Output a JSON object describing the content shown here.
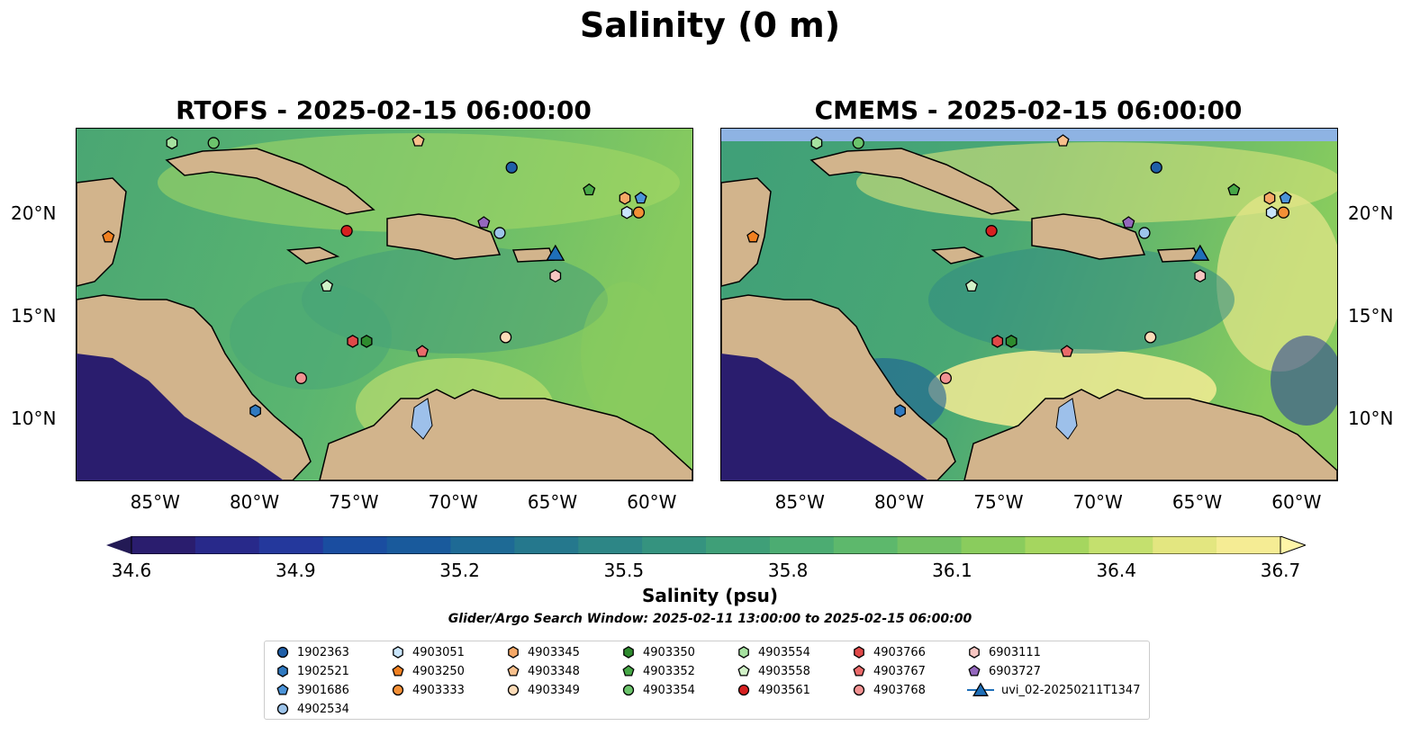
{
  "suptitle": "Salinity (0 m)",
  "panels": [
    {
      "title": "RTOFS - 2025-02-15 06:00:00"
    },
    {
      "title": "CMEMS - 2025-02-15 06:00:00"
    }
  ],
  "lon_labels": [
    "85°W",
    "80°W",
    "75°W",
    "70°W",
    "65°W",
    "60°W"
  ],
  "lat_labels": [
    "20°N",
    "15°N",
    "10°N"
  ],
  "colorbar": {
    "ticks": [
      "34.6",
      "34.9",
      "35.2",
      "35.5",
      "35.8",
      "36.1",
      "36.4",
      "36.7"
    ],
    "label": "Salinity (psu)",
    "colors": [
      "#2a1d6e",
      "#28298a",
      "#24389c",
      "#1a4da0",
      "#195a9c",
      "#1e6a95",
      "#25788d",
      "#2d8686",
      "#35937f",
      "#3f9f78",
      "#4cac72",
      "#5db86c",
      "#72c164",
      "#8acc5d",
      "#a5d65f",
      "#c4e06e",
      "#e3e680",
      "#f5ec94"
    ]
  },
  "search_window": "Glider/Argo Search Window: 2025-02-11 13:00:00 to 2025-02-15 06:00:00",
  "legend": [
    {
      "label": "1902363",
      "shape": "circle",
      "color": "#1f5fa8"
    },
    {
      "label": "1902521",
      "shape": "hexagon",
      "color": "#2f79c0"
    },
    {
      "label": "3901686",
      "shape": "pentagon",
      "color": "#4b93d8"
    },
    {
      "label": "4902534",
      "shape": "circle",
      "color": "#9dc4ea"
    },
    {
      "label": "4903051",
      "shape": "hexagon",
      "color": "#c9e5fb"
    },
    {
      "label": "4903250",
      "shape": "pentagon",
      "color": "#f08020"
    },
    {
      "label": "4903333",
      "shape": "circle",
      "color": "#f39036"
    },
    {
      "label": "4903345",
      "shape": "hexagon",
      "color": "#f6a866"
    },
    {
      "label": "4903348",
      "shape": "pentagon",
      "color": "#f8c08c"
    },
    {
      "label": "4903349",
      "shape": "circle",
      "color": "#fcdcb8"
    },
    {
      "label": "4903350",
      "shape": "hexagon",
      "color": "#2e8b2e"
    },
    {
      "label": "4903352",
      "shape": "pentagon",
      "color": "#47a847"
    },
    {
      "label": "4903354",
      "shape": "circle",
      "color": "#6cc46c"
    },
    {
      "label": "4903554",
      "shape": "hexagon",
      "color": "#a6e2a0"
    },
    {
      "label": "4903558",
      "shape": "pentagon",
      "color": "#d2f2c8"
    },
    {
      "label": "4903561",
      "shape": "circle",
      "color": "#d62020"
    },
    {
      "label": "4903766",
      "shape": "hexagon",
      "color": "#e04848"
    },
    {
      "label": "4903767",
      "shape": "pentagon",
      "color": "#ea6a6a"
    },
    {
      "label": "4903768",
      "shape": "circle",
      "color": "#f29292"
    },
    {
      "label": "6903111",
      "shape": "hexagon",
      "color": "#f8c6c2"
    },
    {
      "label": "6903727",
      "shape": "pentagon",
      "color": "#9467bd"
    },
    {
      "label": "uvi_02-20250211T1347",
      "shape": "triangle",
      "color": "#1f6fb8"
    }
  ],
  "markers": [
    {
      "id": "1902363",
      "shape": "circle",
      "color": "#1f5fa8",
      "lon": -67.1,
      "lat": 22.3
    },
    {
      "id": "1902521",
      "shape": "hexagon",
      "color": "#2f79c0",
      "lon": -80.0,
      "lat": 10.4
    },
    {
      "id": "3901686",
      "shape": "pentagon",
      "color": "#4b93d8",
      "lon": -60.6,
      "lat": 20.8
    },
    {
      "id": "4902534",
      "shape": "circle",
      "color": "#9dc4ea",
      "lon": -67.7,
      "lat": 19.1
    },
    {
      "id": "4903051",
      "shape": "hexagon",
      "color": "#c9e5fb",
      "lon": -61.3,
      "lat": 20.1
    },
    {
      "id": "4903250",
      "shape": "pentagon",
      "color": "#f08020",
      "lon": -87.4,
      "lat": 18.9
    },
    {
      "id": "4903333",
      "shape": "circle",
      "color": "#f39036",
      "lon": -60.7,
      "lat": 20.1
    },
    {
      "id": "4903345",
      "shape": "hexagon",
      "color": "#f6a866",
      "lon": -61.4,
      "lat": 20.8
    },
    {
      "id": "4903348",
      "shape": "pentagon",
      "color": "#f8c08c",
      "lon": -71.8,
      "lat": 23.6
    },
    {
      "id": "4903349",
      "shape": "circle",
      "color": "#fcdcb8",
      "lon": -67.4,
      "lat": 14.0
    },
    {
      "id": "4903350",
      "shape": "hexagon",
      "color": "#2e8b2e",
      "lon": -74.4,
      "lat": 13.8
    },
    {
      "id": "4903352",
      "shape": "pentagon",
      "color": "#47a847",
      "lon": -63.2,
      "lat": 21.2
    },
    {
      "id": "4903354",
      "shape": "circle",
      "color": "#6cc46c",
      "lon": -82.1,
      "lat": 23.5
    },
    {
      "id": "4903554",
      "shape": "hexagon",
      "color": "#a6e2a0",
      "lon": -84.2,
      "lat": 23.5
    },
    {
      "id": "4903558",
      "shape": "pentagon",
      "color": "#d2f2c8",
      "lon": -76.4,
      "lat": 16.5
    },
    {
      "id": "4903561",
      "shape": "circle",
      "color": "#d62020",
      "lon": -75.4,
      "lat": 19.2
    },
    {
      "id": "4903766",
      "shape": "hexagon",
      "color": "#e04848",
      "lon": -75.1,
      "lat": 13.8
    },
    {
      "id": "4903767",
      "shape": "pentagon",
      "color": "#ea6a6a",
      "lon": -71.6,
      "lat": 13.3
    },
    {
      "id": "4903768",
      "shape": "circle",
      "color": "#f29292",
      "lon": -77.7,
      "lat": 12.0
    },
    {
      "id": "6903111",
      "shape": "hexagon",
      "color": "#f8c6c2",
      "lon": -64.9,
      "lat": 17.0
    },
    {
      "id": "6903727",
      "shape": "pentagon",
      "color": "#9467bd",
      "lon": -68.5,
      "lat": 19.6
    },
    {
      "id": "uvi_02-20250211T1347",
      "shape": "triangle",
      "color": "#1f6fb8",
      "lon": -64.9,
      "lat": 18.1
    }
  ]
}
